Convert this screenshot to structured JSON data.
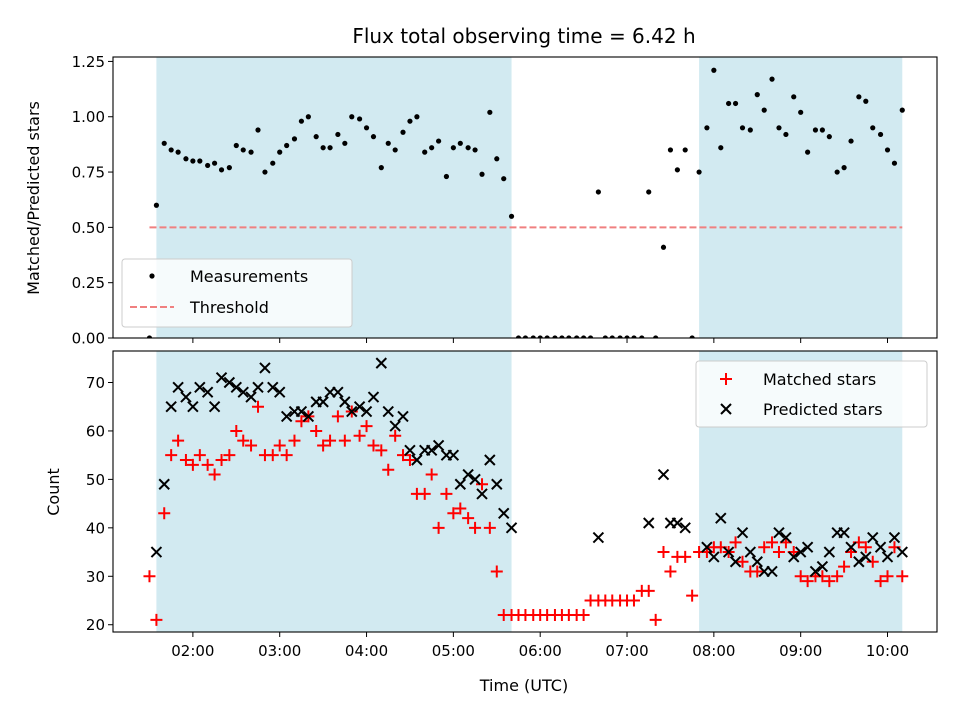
{
  "figure_title": "Flux total observing time = 6.42 h",
  "chart_data": [
    {
      "type": "scatter",
      "ylabel": "Matched/Predicted stars",
      "xlabel": "",
      "xlim": [
        1.08,
        10.57
      ],
      "ylim": [
        0,
        1.27
      ],
      "yticks": [
        0,
        0.25,
        0.5,
        0.75,
        1.0,
        1.25
      ],
      "ytick_labels": [
        "0.00",
        "0.25",
        "0.50",
        "0.75",
        "1.00",
        "1.25"
      ],
      "legend_position": "lower-left",
      "shaded_intervals": [
        [
          1.58,
          5.67
        ],
        [
          7.83,
          10.17
        ]
      ],
      "threshold_line": {
        "name": "Threshold",
        "y": 0.5,
        "x_from": 1.5,
        "x_to": 10.17,
        "color": "#f08080",
        "style": "dashed"
      },
      "series": [
        {
          "name": "Measurements",
          "color": "#000000",
          "marker": "dot",
          "x": [
            1.5,
            1.58,
            1.67,
            1.75,
            1.83,
            1.92,
            2.0,
            2.08,
            2.17,
            2.25,
            2.33,
            2.42,
            2.5,
            2.58,
            2.67,
            2.75,
            2.83,
            2.92,
            3.0,
            3.08,
            3.17,
            3.25,
            3.33,
            3.42,
            3.5,
            3.58,
            3.67,
            3.75,
            3.83,
            3.92,
            4.0,
            4.08,
            4.17,
            4.25,
            4.33,
            4.42,
            4.5,
            4.58,
            4.67,
            4.75,
            4.83,
            4.92,
            5.0,
            5.08,
            5.17,
            5.25,
            5.33,
            5.42,
            5.5,
            5.58,
            5.67,
            5.75,
            5.83,
            5.92,
            6.0,
            6.08,
            6.17,
            6.25,
            6.33,
            6.42,
            6.5,
            6.58,
            6.67,
            6.75,
            6.83,
            6.92,
            7.0,
            7.08,
            7.17,
            7.25,
            7.33,
            7.42,
            7.5,
            7.58,
            7.67,
            7.75,
            7.83,
            7.92,
            8.0,
            8.08,
            8.17,
            8.25,
            8.33,
            8.42,
            8.5,
            8.58,
            8.67,
            8.75,
            8.83,
            8.92,
            9.0,
            9.08,
            9.17,
            9.25,
            9.33,
            9.42,
            9.5,
            9.58,
            9.67,
            9.75,
            9.83,
            9.92,
            10.0,
            10.08,
            10.17
          ],
          "y": [
            0.0,
            0.6,
            0.88,
            0.85,
            0.84,
            0.81,
            0.8,
            0.8,
            0.78,
            0.79,
            0.76,
            0.77,
            0.87,
            0.85,
            0.84,
            0.94,
            0.75,
            0.79,
            0.84,
            0.87,
            0.9,
            0.98,
            1.0,
            0.91,
            0.86,
            0.86,
            0.92,
            0.88,
            1.0,
            0.99,
            0.95,
            0.91,
            0.77,
            0.88,
            0.85,
            0.93,
            0.98,
            1.0,
            0.84,
            0.86,
            0.89,
            0.73,
            0.86,
            0.88,
            0.86,
            0.85,
            0.74,
            1.02,
            0.81,
            0.72,
            0.55,
            0.0,
            0.0,
            0.0,
            0.0,
            0.0,
            0.0,
            0.0,
            0.0,
            0.0,
            0.0,
            0.0,
            0.66,
            0.0,
            0.0,
            0.0,
            0.0,
            0.0,
            0.0,
            0.66,
            0.0,
            0.41,
            0.85,
            0.76,
            0.85,
            0.0,
            0.75,
            0.95,
            1.21,
            0.86,
            1.06,
            1.06,
            0.95,
            0.94,
            1.1,
            1.03,
            1.17,
            0.95,
            0.92,
            1.09,
            1.02,
            0.84,
            0.94,
            0.94,
            0.91,
            0.75,
            0.77,
            0.89,
            1.09,
            1.07,
            0.95,
            0.92,
            0.85,
            0.79,
            1.03
          ]
        }
      ]
    },
    {
      "type": "scatter",
      "ylabel": "Count",
      "xlabel": "Time (UTC)",
      "xlim": [
        1.08,
        10.57
      ],
      "ylim": [
        18.5,
        76.5
      ],
      "yticks": [
        20,
        30,
        40,
        50,
        60,
        70
      ],
      "ytick_labels": [
        "20",
        "30",
        "40",
        "50",
        "60",
        "70"
      ],
      "xticks": [
        2,
        3,
        4,
        5,
        6,
        7,
        8,
        9,
        10
      ],
      "xtick_labels": [
        "02:00",
        "03:00",
        "04:00",
        "05:00",
        "06:00",
        "07:00",
        "08:00",
        "09:00",
        "10:00"
      ],
      "legend_position": "top-right",
      "shaded_intervals": [
        [
          1.58,
          5.67
        ],
        [
          7.83,
          10.17
        ]
      ],
      "series": [
        {
          "name": "Matched stars",
          "color": "#ff0000",
          "marker": "plus",
          "x": [
            1.5,
            1.58,
            1.67,
            1.75,
            1.83,
            1.92,
            2.0,
            2.08,
            2.17,
            2.25,
            2.33,
            2.42,
            2.5,
            2.58,
            2.67,
            2.75,
            2.83,
            2.92,
            3.0,
            3.08,
            3.17,
            3.25,
            3.33,
            3.42,
            3.5,
            3.58,
            3.67,
            3.75,
            3.83,
            3.92,
            4.0,
            4.08,
            4.17,
            4.25,
            4.33,
            4.42,
            4.5,
            4.58,
            4.67,
            4.75,
            4.83,
            4.92,
            5.0,
            5.08,
            5.17,
            5.25,
            5.33,
            5.42,
            5.5,
            5.58,
            5.67,
            5.75,
            5.83,
            5.92,
            6.0,
            6.08,
            6.17,
            6.25,
            6.33,
            6.42,
            6.5,
            6.58,
            6.67,
            6.75,
            6.83,
            6.92,
            7.0,
            7.08,
            7.17,
            7.25,
            7.33,
            7.42,
            7.5,
            7.58,
            7.67,
            7.75,
            7.83,
            7.92,
            8.0,
            8.08,
            8.17,
            8.25,
            8.33,
            8.42,
            8.5,
            8.58,
            8.67,
            8.75,
            8.83,
            8.92,
            9.0,
            9.08,
            9.17,
            9.25,
            9.33,
            9.42,
            9.5,
            9.58,
            9.67,
            9.75,
            9.83,
            9.92,
            10.0,
            10.08,
            10.17
          ],
          "y": [
            30,
            21,
            43,
            55,
            58,
            54,
            53,
            55,
            53,
            51,
            54,
            55,
            60,
            58,
            57,
            65,
            55,
            55,
            57,
            55,
            58,
            62,
            63,
            60,
            57,
            58,
            63,
            58,
            64,
            59,
            61,
            57,
            56,
            52,
            59,
            55,
            54,
            47,
            47,
            51,
            40,
            47,
            43,
            44,
            42,
            40,
            49,
            40,
            31,
            22,
            22,
            22,
            22,
            22,
            22,
            22,
            22,
            22,
            22,
            22,
            22,
            25,
            25,
            25,
            25,
            25,
            25,
            25,
            27,
            27,
            21,
            35,
            31,
            34,
            34,
            26,
            35,
            35,
            36,
            36,
            35,
            37,
            33,
            31,
            31,
            36,
            37,
            35,
            37,
            35,
            30,
            29,
            30,
            30,
            29,
            30,
            32,
            35,
            37,
            36,
            33,
            29,
            30,
            36,
            30
          ]
        },
        {
          "name": "Predicted stars",
          "color": "#000000",
          "marker": "cross",
          "x": [
            1.58,
            1.67,
            1.75,
            1.83,
            1.92,
            2.0,
            2.08,
            2.17,
            2.25,
            2.33,
            2.42,
            2.5,
            2.58,
            2.67,
            2.75,
            2.83,
            2.92,
            3.0,
            3.08,
            3.17,
            3.25,
            3.33,
            3.42,
            3.5,
            3.58,
            3.67,
            3.75,
            3.83,
            3.92,
            4.0,
            4.08,
            4.17,
            4.25,
            4.33,
            4.42,
            4.5,
            4.58,
            4.67,
            4.75,
            4.83,
            4.92,
            5.0,
            5.08,
            5.17,
            5.25,
            5.33,
            5.42,
            5.5,
            5.58,
            5.67,
            6.67,
            7.25,
            7.42,
            7.5,
            7.58,
            7.67,
            7.92,
            8.0,
            8.08,
            8.17,
            8.25,
            8.33,
            8.42,
            8.5,
            8.58,
            8.67,
            8.75,
            8.83,
            8.92,
            9.0,
            9.08,
            9.17,
            9.25,
            9.33,
            9.42,
            9.5,
            9.58,
            9.67,
            9.75,
            9.83,
            9.92,
            10.0,
            10.08,
            10.17
          ],
          "y": [
            35,
            49,
            65,
            69,
            67,
            65,
            69,
            68,
            65,
            71,
            70,
            69,
            68,
            67,
            69,
            73,
            69,
            68,
            63,
            64,
            64,
            63,
            66,
            66,
            68,
            68,
            66,
            64,
            65,
            64,
            67,
            74,
            64,
            61,
            63,
            56,
            54,
            56,
            56,
            57,
            55,
            55,
            49,
            51,
            50,
            47,
            54,
            49,
            43,
            40,
            38,
            41,
            51,
            41,
            41,
            40,
            36,
            34,
            42,
            35,
            33,
            39,
            35,
            33,
            31,
            31,
            39,
            38,
            34,
            35,
            36,
            31,
            32,
            35,
            39,
            39,
            36,
            33,
            34,
            38,
            36,
            34,
            38,
            35
          ]
        }
      ]
    }
  ]
}
